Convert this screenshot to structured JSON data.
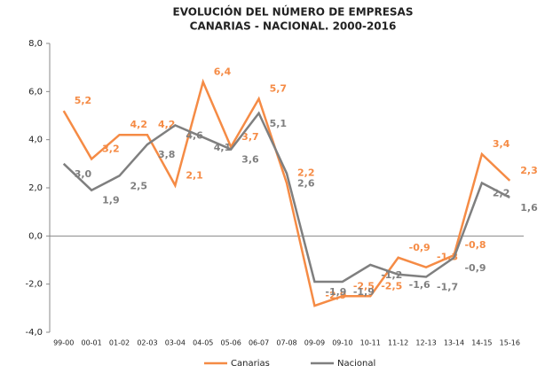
{
  "chart_data": {
    "type": "line",
    "title": [
      "EVOLUCIÓN  DEL NÚMERO  DE EMPRESAS",
      "CANARIAS  - NACIONAL.  2000-2016"
    ],
    "categories": [
      "99-00",
      "00-01",
      "01-02",
      "02-03",
      "03-04",
      "04-05",
      "05-06",
      "06-07",
      "07-08",
      "09-09",
      "09-10",
      "10-11",
      "11-12",
      "12-13",
      "13-14",
      "14-15",
      "15-16"
    ],
    "series": [
      {
        "name": "Canarias",
        "color": "#f58b45",
        "values": [
          5.2,
          3.2,
          4.2,
          4.2,
          2.1,
          6.4,
          3.7,
          5.7,
          2.2,
          -2.9,
          -2.5,
          -2.5,
          -0.9,
          -1.3,
          -0.8,
          3.4,
          2.3
        ],
        "value_labels": [
          "5,2",
          "3,2",
          "4,2",
          "4,2",
          "2,1",
          "6,4",
          "3,7",
          "5,7",
          "2,2",
          "-2,9",
          "-2,5",
          "-2,5",
          "-0,9",
          "-1,3",
          "-0,8",
          "3,4",
          "2,3"
        ]
      },
      {
        "name": "Nacional",
        "color": "#7f7f7f",
        "values": [
          3.0,
          1.9,
          2.5,
          3.8,
          4.6,
          4.1,
          3.6,
          5.1,
          2.6,
          -1.9,
          -1.9,
          -1.2,
          -1.6,
          -1.7,
          -0.9,
          2.2,
          1.6
        ],
        "value_labels": [
          "3,0",
          "1,9",
          "2,5",
          "3,8",
          "4,6",
          "4,1",
          "3,6",
          "5,1",
          "2,6",
          "-1,9",
          "-1,9",
          "-1,2",
          "-1,6",
          "-1,7",
          "-0,9",
          "2,2",
          "1,6"
        ]
      }
    ],
    "ylim": [
      -4,
      8
    ],
    "yticks": [
      {
        "value": -4,
        "label": "-4,0"
      },
      {
        "value": -2,
        "label": "-2,0"
      },
      {
        "value": 0,
        "label": "0,0"
      },
      {
        "value": 2,
        "label": "2,0"
      },
      {
        "value": 4,
        "label": "4,0"
      },
      {
        "value": 6,
        "label": "6,0"
      },
      {
        "value": 8,
        "label": "8,0"
      }
    ],
    "legend": "bottom"
  }
}
